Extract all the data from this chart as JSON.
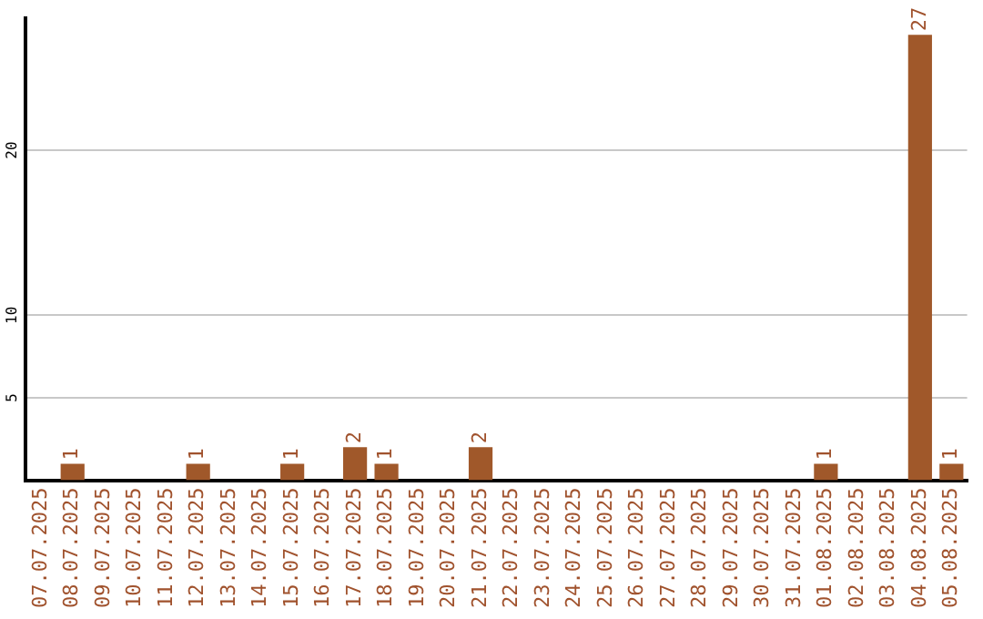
{
  "chart_data": {
    "type": "bar",
    "categories": [
      "07.07.2025",
      "08.07.2025",
      "09.07.2025",
      "10.07.2025",
      "11.07.2025",
      "12.07.2025",
      "13.07.2025",
      "14.07.2025",
      "15.07.2025",
      "16.07.2025",
      "17.07.2025",
      "18.07.2025",
      "19.07.2025",
      "20.07.2025",
      "21.07.2025",
      "22.07.2025",
      "23.07.2025",
      "24.07.2025",
      "25.07.2025",
      "26.07.2025",
      "27.07.2025",
      "28.07.2025",
      "29.07.2025",
      "30.07.2025",
      "31.07.2025",
      "01.08.2025",
      "02.08.2025",
      "03.08.2025",
      "04.08.2025",
      "05.08.2025"
    ],
    "values": [
      0,
      1,
      0,
      0,
      0,
      1,
      0,
      0,
      1,
      0,
      2,
      1,
      0,
      0,
      2,
      0,
      0,
      0,
      0,
      0,
      0,
      0,
      0,
      0,
      0,
      1,
      0,
      0,
      27,
      1
    ],
    "value_labels": [
      null,
      "1",
      null,
      null,
      null,
      "1",
      null,
      null,
      "1",
      null,
      "2",
      "1",
      null,
      null,
      "2",
      null,
      null,
      null,
      null,
      null,
      null,
      null,
      null,
      null,
      null,
      "1",
      null,
      null,
      "27",
      "1"
    ],
    "color": "#a0582a",
    "ylim": [
      0,
      28
    ],
    "yticks": [
      5,
      10,
      20
    ],
    "grid": "y",
    "legend": false
  }
}
